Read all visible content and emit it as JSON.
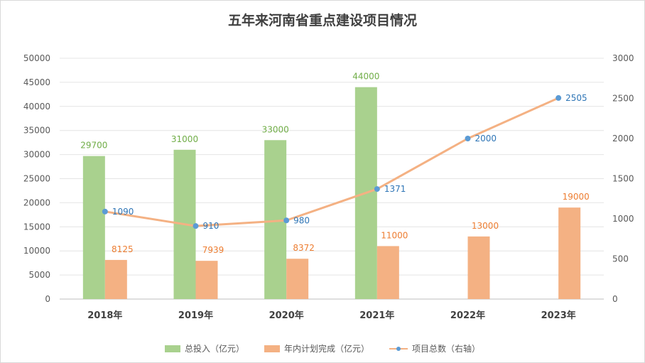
{
  "chart_data": {
    "type": "bar+line",
    "title": "五年来河南省重点建设项目情况",
    "categories": [
      "2018年",
      "2019年",
      "2020年",
      "2021年",
      "2022年",
      "2023年"
    ],
    "y_left": {
      "min": 0,
      "max": 50000,
      "step": 5000,
      "ticks": [
        "0",
        "5000",
        "10000",
        "15000",
        "20000",
        "25000",
        "30000",
        "35000",
        "40000",
        "45000",
        "50000"
      ]
    },
    "y_right": {
      "min": 0,
      "max": 3000,
      "step": 500,
      "ticks": [
        "0",
        "500",
        "1000",
        "1500",
        "2000",
        "2500",
        "3000"
      ]
    },
    "grid": true,
    "legend_position": "bottom",
    "series": [
      {
        "name": "总投入（亿元）",
        "type": "bar",
        "axis": "left",
        "color": "#a9d18e",
        "label_color": "#70ad47",
        "values": [
          29700,
          31000,
          33000,
          44000,
          null,
          null
        ],
        "labels": [
          "29700",
          "31000",
          "33000",
          "44000",
          "",
          ""
        ]
      },
      {
        "name": "年内计划完成（亿元）",
        "type": "bar",
        "axis": "left",
        "color": "#f4b183",
        "label_color": "#ed7d31",
        "values": [
          8125,
          7939,
          8372,
          11000,
          13000,
          19000
        ],
        "labels": [
          "8125",
          "7939",
          "8372",
          "11000",
          "13000",
          "19000"
        ]
      },
      {
        "name": "项目总数（右轴）",
        "type": "line",
        "axis": "right",
        "color": "#f4b183",
        "marker_color": "#5b9bd5",
        "label_color": "#2e75b6",
        "values": [
          1090,
          910,
          980,
          1371,
          2000,
          2505
        ],
        "labels": [
          "1090",
          "910",
          "980",
          "1371",
          "2000",
          "2505"
        ]
      }
    ]
  }
}
